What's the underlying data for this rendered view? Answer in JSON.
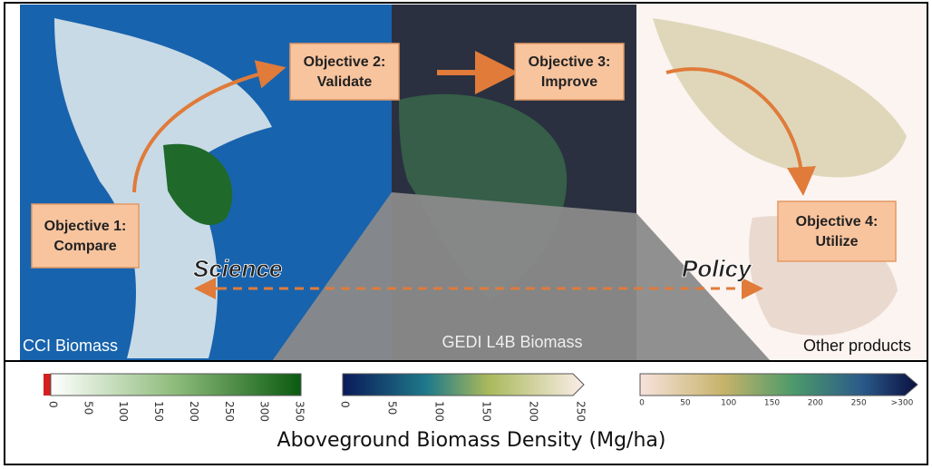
{
  "objectives": [
    {
      "title": "Objective 1:",
      "label": "Compare"
    },
    {
      "title": "Objective 2:",
      "label": "Validate"
    },
    {
      "title": "Objective 3:",
      "label": "Improve"
    },
    {
      "title": "Objective 4:",
      "label": "Utilize"
    }
  ],
  "themes": {
    "left": "Science",
    "right": "Policy"
  },
  "panels": [
    "CCI Biomass",
    "GEDI L4B Biomass",
    "Other products"
  ],
  "colorbars": [
    {
      "ticks": [
        "0",
        "50",
        "100",
        "150",
        "200",
        "250",
        "300",
        "350"
      ]
    },
    {
      "ticks": [
        "0",
        "50",
        "100",
        "150",
        "200",
        "250"
      ]
    },
    {
      "ticks": [
        "0",
        "50",
        "100",
        "150",
        "200",
        "250",
        ">300"
      ]
    }
  ],
  "legend_title": "Aboveground Biomass Density (Mg/ha)"
}
